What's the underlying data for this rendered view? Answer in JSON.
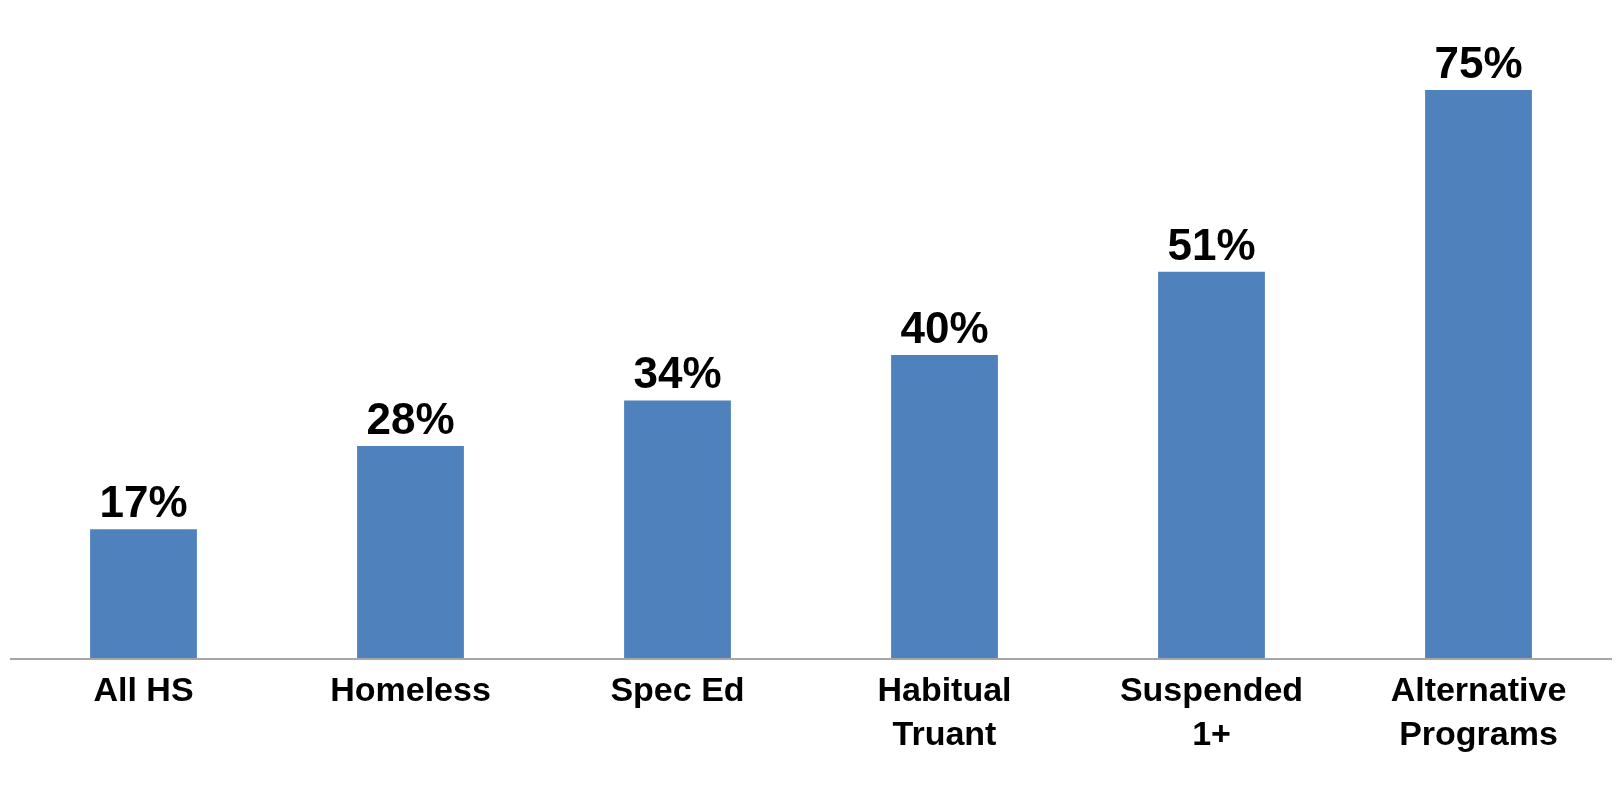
{
  "chart_data": {
    "type": "bar",
    "categories": [
      "All HS",
      "Homeless",
      "Spec Ed",
      "Habitual\nTruant",
      "Suspended\n1+",
      "Alternative\nPrograms"
    ],
    "values": [
      17,
      28,
      34,
      40,
      51,
      75
    ],
    "value_labels": [
      "17%",
      "28%",
      "34%",
      "40%",
      "51%",
      "75%"
    ],
    "color": "#4f81bd",
    "tick_labels": "x",
    "grid": false,
    "legend": false
  }
}
